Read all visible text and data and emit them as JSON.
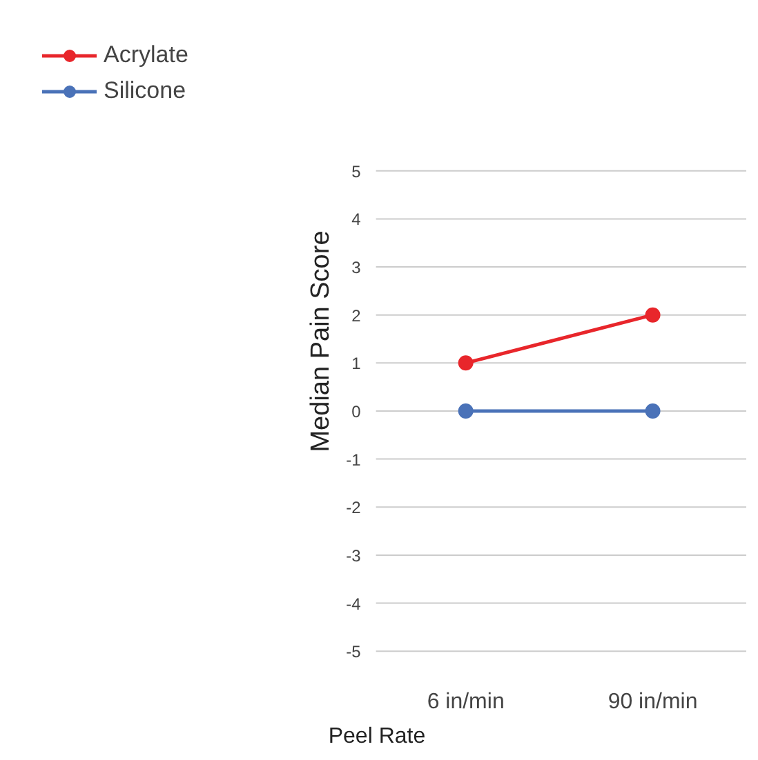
{
  "chart_data": {
    "type": "line",
    "xlabel": "Peel Rate",
    "ylabel": "Median Pain Score",
    "categories": [
      "6 in/min",
      "90 in/min"
    ],
    "series": [
      {
        "name": "Acrylate",
        "color": "#e8262b",
        "values": [
          1,
          2
        ]
      },
      {
        "name": "Silicone",
        "color": "#4a72b8",
        "values": [
          0,
          0
        ]
      }
    ],
    "ylim": [
      -5,
      5
    ],
    "yticks": [
      -5,
      -4,
      -3,
      -2,
      -1,
      0,
      1,
      2,
      3,
      4,
      5
    ],
    "grid": "y",
    "legend": "top left",
    "marker": "circle",
    "line_style": "solid"
  }
}
